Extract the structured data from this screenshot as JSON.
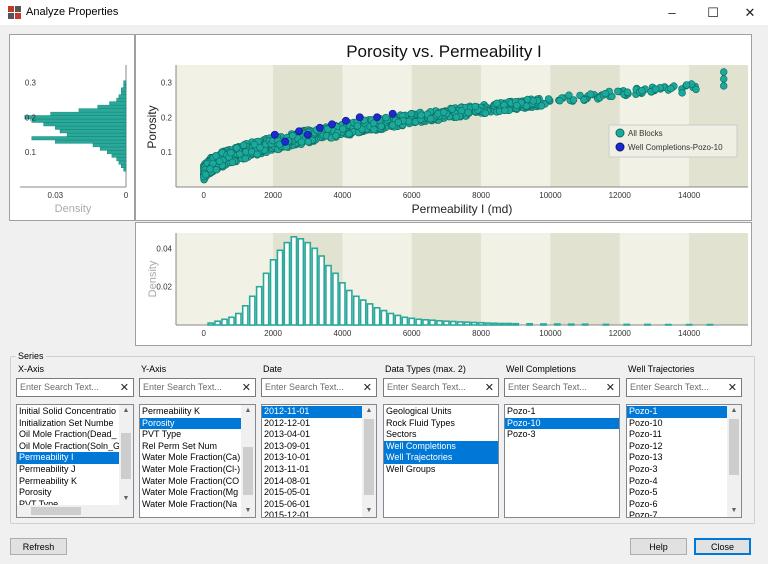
{
  "window": {
    "title": "Analyze Properties",
    "controls": {
      "minimize": "–",
      "maximize": "☐",
      "close": "✕"
    }
  },
  "colors": {
    "points": "#1aa99a",
    "well_points": "#1c2bd0",
    "bars": "#2aa89a",
    "selection": "#0078d7"
  },
  "scatter": {
    "title": "Porosity vs. Permeability I",
    "xlabel": "Permeability I (md)",
    "ylabel": "Porosity",
    "x_ticks": [
      "0",
      "2000",
      "4000",
      "6000",
      "8000",
      "10000",
      "12000",
      "14000"
    ],
    "y_ticks": [
      "0.1",
      "0.2",
      "0.3"
    ],
    "legend": [
      "All Blocks",
      "Well Completions-Pozo-10"
    ]
  },
  "density_left": {
    "label": "Density",
    "y_ticks": [
      "0.1",
      "0.2",
      "0.3"
    ],
    "x_ticks": [
      "0.03",
      "0"
    ]
  },
  "density_bottom": {
    "label": "Density",
    "y_ticks": [
      "0.02",
      "0.04"
    ],
    "x_ticks": [
      "0",
      "2000",
      "4000",
      "6000",
      "8000",
      "10000",
      "12000",
      "14000"
    ]
  },
  "chart_data": [
    {
      "type": "scatter",
      "title": "Porosity vs. Permeability I",
      "xlabel": "Permeability I (md)",
      "ylabel": "Porosity",
      "xlim": [
        -800,
        15700
      ],
      "ylim": [
        0,
        0.35
      ],
      "grid": false,
      "legend_position": "right",
      "series": [
        {
          "name": "All Blocks",
          "trend": "porosity rises from ~0.04 at 0 md to ~0.30 at 15000 md",
          "x_range": [
            0,
            15000
          ],
          "y_range": [
            0.03,
            0.33
          ]
        },
        {
          "name": "Well Completions-Pozo-10",
          "points": [
            [
              2050,
              0.15
            ],
            [
              2350,
              0.13
            ],
            [
              2750,
              0.16
            ],
            [
              3000,
              0.15
            ],
            [
              3350,
              0.17
            ],
            [
              3700,
              0.18
            ],
            [
              4100,
              0.19
            ],
            [
              4500,
              0.2
            ],
            [
              5000,
              0.2
            ],
            [
              5450,
              0.21
            ]
          ]
        }
      ]
    },
    {
      "type": "bar",
      "title": "",
      "ylabel": "Density",
      "xlim": [
        -800,
        15700
      ],
      "ylim": [
        0,
        0.048
      ],
      "bin_centers": [
        200,
        400,
        600,
        800,
        1000,
        1200,
        1400,
        1600,
        1800,
        2000,
        2200,
        2400,
        2600,
        2800,
        3000,
        3200,
        3400,
        3600,
        3800,
        4000,
        4200,
        4400,
        4600,
        4800,
        5000,
        5200,
        5400,
        5600,
        5800,
        6000,
        6200,
        6400,
        6600,
        6800,
        7000,
        7200,
        7400,
        7600,
        7800,
        8000,
        8200,
        8400,
        8600,
        8800,
        9000,
        9400,
        9800,
        10200,
        10600,
        11000,
        11600,
        12200,
        12800,
        13400,
        14000,
        14600
      ],
      "values": [
        0.001,
        0.002,
        0.003,
        0.004,
        0.006,
        0.01,
        0.015,
        0.02,
        0.027,
        0.034,
        0.039,
        0.043,
        0.046,
        0.045,
        0.043,
        0.04,
        0.036,
        0.031,
        0.027,
        0.022,
        0.018,
        0.015,
        0.013,
        0.011,
        0.009,
        0.0075,
        0.006,
        0.005,
        0.004,
        0.0035,
        0.003,
        0.0027,
        0.0025,
        0.0022,
        0.002,
        0.0018,
        0.0016,
        0.0015,
        0.0013,
        0.0012,
        0.001,
        0.0009,
        0.0008,
        0.0008,
        0.0007,
        0.0006,
        0.0005,
        0.0005,
        0.0004,
        0.0004,
        0.0003,
        0.0003,
        0.0003,
        0.0002,
        0.0002,
        0.0002
      ]
    },
    {
      "type": "bar",
      "title": "",
      "xlabel": "Density",
      "orientation": "horizontal",
      "ylim": [
        0,
        0.35
      ],
      "xlim": [
        0.045,
        0
      ],
      "bin_centers": [
        0.05,
        0.06,
        0.07,
        0.08,
        0.09,
        0.1,
        0.11,
        0.12,
        0.13,
        0.14,
        0.15,
        0.16,
        0.17,
        0.18,
        0.19,
        0.2,
        0.21,
        0.22,
        0.23,
        0.24,
        0.25,
        0.26,
        0.27,
        0.28,
        0.29,
        0.3
      ],
      "values": [
        0.001,
        0.002,
        0.003,
        0.004,
        0.006,
        0.008,
        0.011,
        0.014,
        0.03,
        0.04,
        0.025,
        0.028,
        0.03,
        0.035,
        0.04,
        0.043,
        0.032,
        0.02,
        0.012,
        0.007,
        0.004,
        0.003,
        0.002,
        0.002,
        0.001,
        0.001
      ]
    }
  ],
  "series_panel": {
    "group_label": "Series",
    "search_placeholder": "Enter Search Text...",
    "columns": [
      {
        "label": "X-Axis",
        "items": [
          "Initial Solid Concentratio",
          "Initialization Set Numbe",
          "Oil Mole Fraction(Dead_",
          "Oil Mole Fraction(Soln_G",
          "Permeability I",
          "Permeability J",
          "Permeability K",
          "Porosity",
          "PVT Type"
        ],
        "selected": [
          4
        ]
      },
      {
        "label": "Y-Axis",
        "items": [
          "Permeability K",
          "Porosity",
          "PVT Type",
          "Rel Perm Set Num",
          "Water Mole Fraction(Ca)",
          "Water Mole Fraction(Cl-)",
          "Water Mole Fraction(CO",
          "Water Mole Fraction(Mg",
          "Water Mole Fraction(Na"
        ],
        "selected": [
          1
        ]
      },
      {
        "label": "Date",
        "items": [
          "2012-11-01",
          "2012-12-01",
          "2013-04-01",
          "2013-09-01",
          "2013-10-01",
          "2013-11-01",
          "2014-08-01",
          "2015-05-01",
          "2015-06-01",
          "2015-12-01"
        ],
        "selected": [
          0
        ]
      },
      {
        "label": "Data Types (max. 2)",
        "items": [
          "Geological Units",
          "Rock Fluid Types",
          "Sectors",
          "Well Completions",
          "Well Trajectories",
          "Well Groups"
        ],
        "selected": [
          3,
          4
        ]
      },
      {
        "label": "Well Completions",
        "items": [
          "Pozo-1",
          "Pozo-10",
          "Pozo-3"
        ],
        "selected": [
          1
        ]
      },
      {
        "label": "Well Trajectories",
        "items": [
          "Pozo-1",
          "Pozo-10",
          "Pozo-11",
          "Pozo-12",
          "Pozo-13",
          "Pozo-3",
          "Pozo-4",
          "Pozo-5",
          "Pozo-6",
          "Pozo-7"
        ],
        "selected": [
          0
        ]
      }
    ]
  },
  "buttons": {
    "refresh": "Refresh",
    "help": "Help",
    "close": "Close"
  }
}
